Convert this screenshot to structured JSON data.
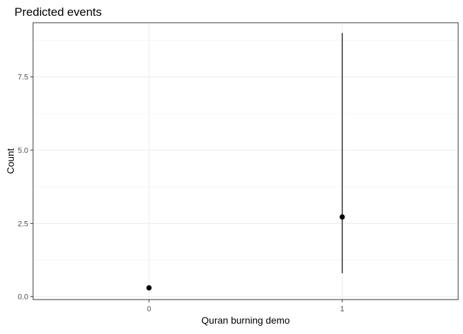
{
  "chart_data": {
    "type": "scatter",
    "title": "Predicted events",
    "xlabel": "Quran burning demo",
    "ylabel": "Count",
    "categories": [
      "0",
      "1"
    ],
    "x_range": [
      -0.6,
      1.6
    ],
    "ylim": [
      -0.1,
      9.35
    ],
    "y_ticks": [
      {
        "value": 0.0,
        "label": "0.0"
      },
      {
        "value": 2.5,
        "label": "2.5"
      },
      {
        "value": 5.0,
        "label": "5.0"
      },
      {
        "value": 7.5,
        "label": "7.5"
      }
    ],
    "y_minor_ticks": [
      1.25,
      3.75,
      6.25,
      8.75
    ],
    "series": [
      {
        "values": [
          0.3,
          2.72
        ],
        "lower": [
          0.3,
          0.8
        ],
        "upper": [
          0.3,
          9.0
        ]
      }
    ],
    "grid": true,
    "legend": "none",
    "colors": {
      "point": "#000000",
      "grid_major": "#ebebeb",
      "grid_minor": "#f5f5f5",
      "panel_border": "#333333",
      "tick_label": "#4d4d4d",
      "text": "#000000"
    }
  }
}
